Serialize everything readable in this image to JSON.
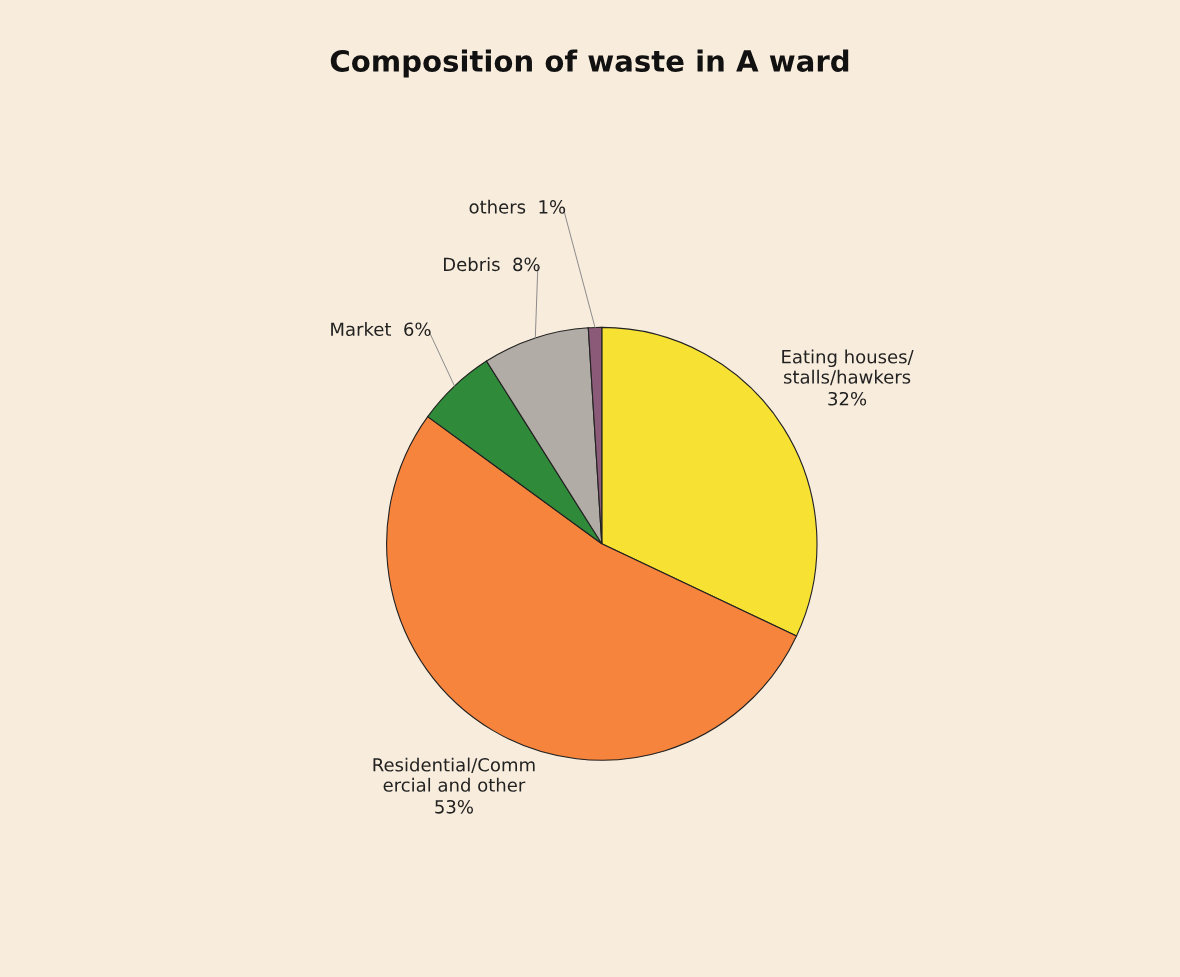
{
  "chart_data": {
    "type": "pie",
    "title": "Composition of waste in A ward",
    "categories": [
      "Eating houses/\nstalls/hawkers",
      "Residential/Comm\nercial and other",
      "Market",
      "Debris",
      "others"
    ],
    "values": [
      32,
      53,
      6,
      8,
      1
    ],
    "value_labels": [
      "32%",
      "53%",
      "6%",
      "8%",
      "1%"
    ],
    "colors": [
      "#f7e234",
      "#f7843c",
      "#2f8a3a",
      "#b2aca6",
      "#8a5a78"
    ]
  }
}
